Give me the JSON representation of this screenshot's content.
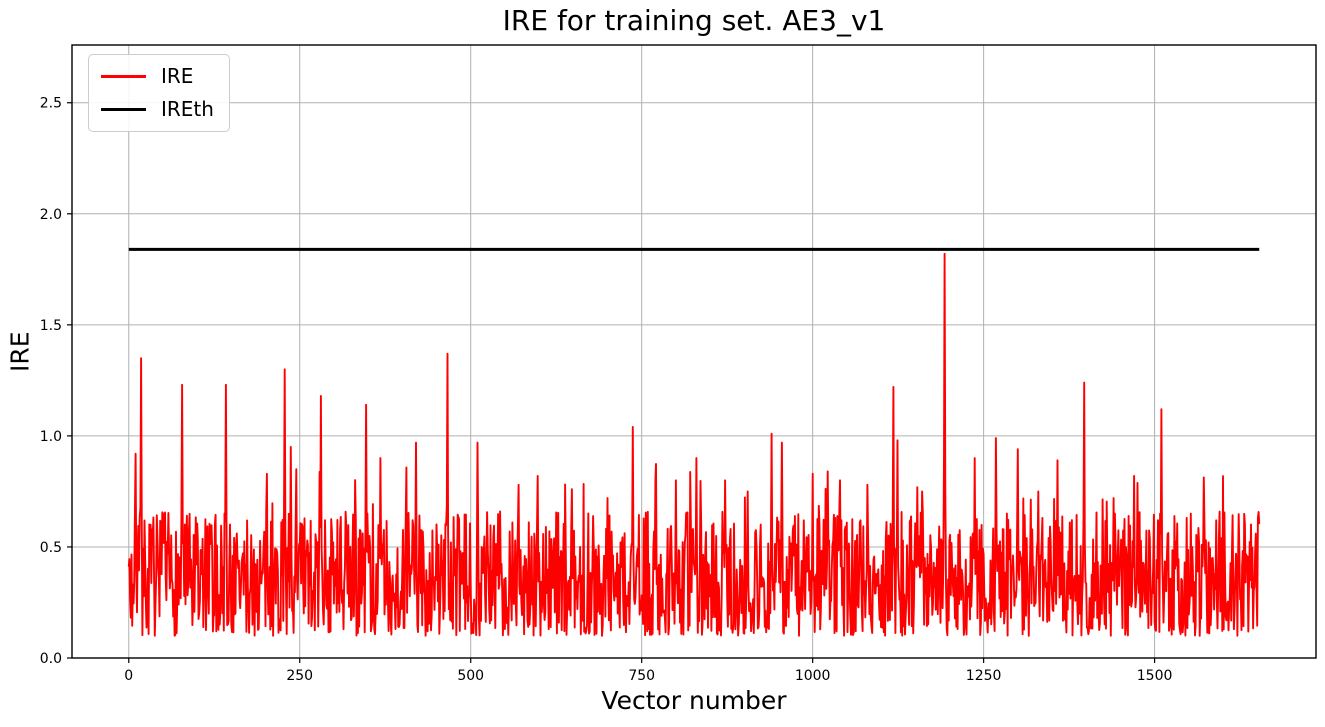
{
  "chart_data": {
    "type": "line",
    "title": "IRE for training set. AE3_v1",
    "xlabel": "Vector number",
    "ylabel": "IRE",
    "xlim": [
      -83,
      1736
    ],
    "ylim": [
      0,
      2.76
    ],
    "xticks": [
      0,
      250,
      500,
      750,
      1000,
      1250,
      1500
    ],
    "xtick_labels": [
      "0",
      "250",
      "500",
      "750",
      "1000",
      "1250",
      "1500"
    ],
    "yticks": [
      0.0,
      0.5,
      1.0,
      1.5,
      2.0,
      2.5
    ],
    "ytick_labels": [
      "0.0",
      "0.5",
      "1.0",
      "1.5",
      "2.0",
      "2.5"
    ],
    "grid": true,
    "grid_color": "#b0b0b0",
    "axes_color": "#000000",
    "background_color": "#ffffff",
    "legend": {
      "position": "upper-left",
      "entries": [
        {
          "label": "IRE",
          "color": "#ff0000"
        },
        {
          "label": "IREth",
          "color": "#000000"
        }
      ]
    },
    "series": [
      {
        "name": "IRE",
        "color": "#ff0000",
        "style": "noisy-line",
        "line_width": 1.9,
        "x_start": 0,
        "x_end": 1653,
        "description": "Dense noisy reconstruction-error trace oscillating mostly between 0.1 and 0.7 with the prominent peaks listed below; one spike at x=1193 almost reaches the threshold.",
        "noise": {
          "seed": 7,
          "floor": 0.1,
          "span": 0.56,
          "shape": 1.35,
          "burst_prob": 0.07,
          "burst_max": 0.32
        },
        "peaks": [
          [
            10,
            0.92
          ],
          [
            18,
            1.35
          ],
          [
            78,
            1.23
          ],
          [
            142,
            1.23
          ],
          [
            228,
            1.3
          ],
          [
            237,
            0.95
          ],
          [
            245,
            0.85
          ],
          [
            281,
            1.18
          ],
          [
            347,
            1.14
          ],
          [
            368,
            0.9
          ],
          [
            420,
            0.97
          ],
          [
            466,
            1.37
          ],
          [
            510,
            0.97
          ],
          [
            543,
            0.66
          ],
          [
            570,
            0.78
          ],
          [
            598,
            0.82
          ],
          [
            648,
            0.76
          ],
          [
            700,
            0.72
          ],
          [
            737,
            1.04
          ],
          [
            770,
            0.8
          ],
          [
            800,
            0.8
          ],
          [
            830,
            0.9
          ],
          [
            872,
            0.8
          ],
          [
            905,
            0.75
          ],
          [
            940,
            1.01
          ],
          [
            955,
            0.97
          ],
          [
            1000,
            0.83
          ],
          [
            1022,
            0.84
          ],
          [
            1040,
            0.8
          ],
          [
            1080,
            0.78
          ],
          [
            1118,
            1.22
          ],
          [
            1124,
            0.98
          ],
          [
            1160,
            0.75
          ],
          [
            1193,
            1.82
          ],
          [
            1237,
            0.9
          ],
          [
            1268,
            0.99
          ],
          [
            1300,
            0.94
          ],
          [
            1330,
            0.75
          ],
          [
            1358,
            0.89
          ],
          [
            1397,
            1.24
          ],
          [
            1440,
            0.72
          ],
          [
            1470,
            0.82
          ],
          [
            1510,
            1.12
          ],
          [
            1553,
            0.65
          ],
          [
            1590,
            0.62
          ],
          [
            1648,
            0.56
          ]
        ]
      },
      {
        "name": "IREth",
        "color": "#000000",
        "style": "hline",
        "line_width": 3,
        "value": 1.84,
        "x_start": 0,
        "x_end": 1653
      }
    ]
  }
}
